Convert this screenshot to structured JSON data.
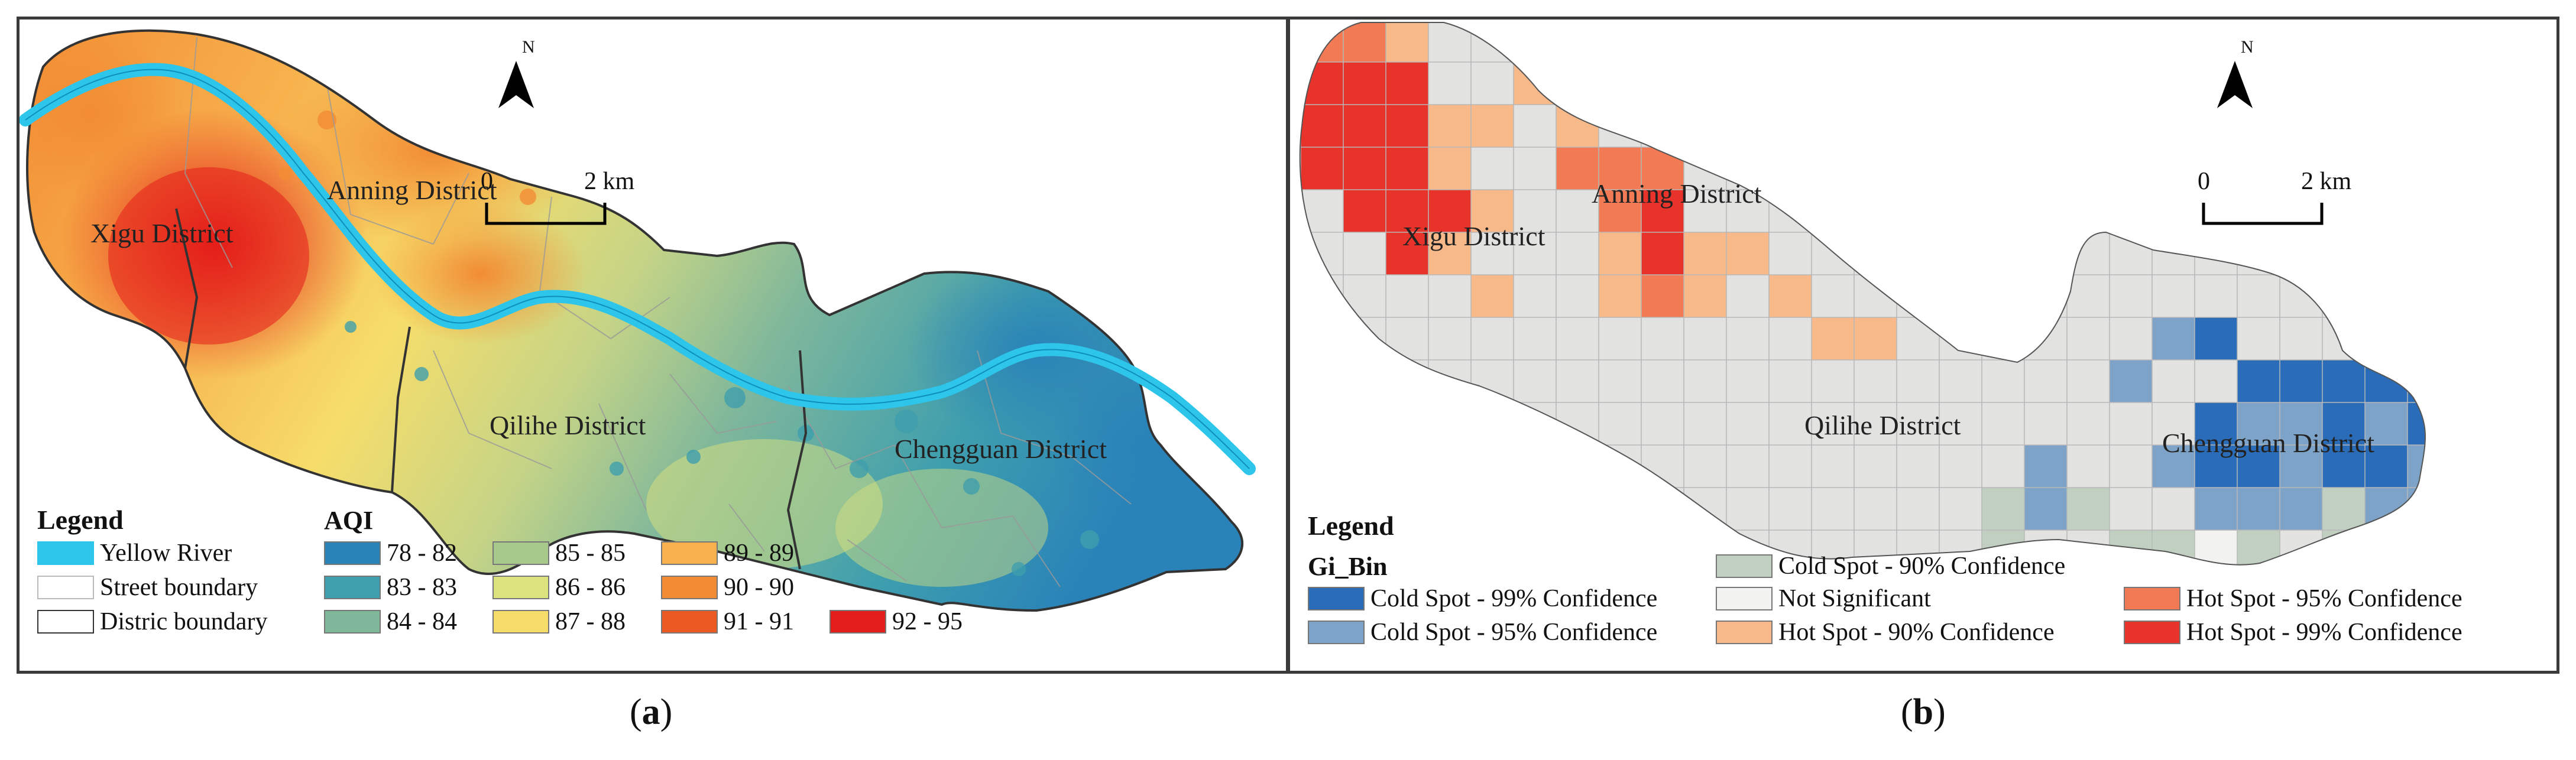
{
  "panel_a": {
    "compass_label": "N",
    "scale": {
      "zero": "0",
      "end": "2 km"
    },
    "districts": [
      "Xigu District",
      "Anning District",
      "Qilihe District",
      "Chengguan District"
    ],
    "legend": {
      "title": "Legend",
      "items": [
        {
          "label": "Yellow River",
          "color": "#2ec5ea"
        },
        {
          "label": "Street boundary",
          "color": "#ffffff"
        },
        {
          "label": "Distric boundary",
          "color": "#ffffff"
        }
      ]
    },
    "aqi": {
      "title": "AQI",
      "classes": [
        {
          "label": "78 - 82",
          "color": "#2a83b8"
        },
        {
          "label": "83 - 83",
          "color": "#3f9fad"
        },
        {
          "label": "84 - 84",
          "color": "#7fb79b"
        },
        {
          "label": "85 - 85",
          "color": "#a8c98c"
        },
        {
          "label": "86 - 86",
          "color": "#dce27e"
        },
        {
          "label": "87 - 88",
          "color": "#f6dd6a"
        },
        {
          "label": "89 - 89",
          "color": "#f7b14c"
        },
        {
          "label": "90 - 90",
          "color": "#f28c34"
        },
        {
          "label": "91 - 91",
          "color": "#ec5a22"
        },
        {
          "label": "92 - 95",
          "color": "#e41e1a"
        }
      ]
    }
  },
  "panel_b": {
    "compass_label": "N",
    "scale": {
      "zero": "0",
      "end": "2 km"
    },
    "districts": [
      "Xigu District",
      "Anning District",
      "Qilihe District",
      "Chengguan District"
    ],
    "legend": {
      "title": "Legend",
      "field": "Gi_Bin",
      "classes": [
        {
          "label": "Cold Spot - 99% Confidence",
          "color": "#2b6cb8"
        },
        {
          "label": "Cold Spot - 95% Confidence",
          "color": "#7ea3c9"
        },
        {
          "label": "Cold Spot - 90% Confidence",
          "color": "#c0cfc0"
        },
        {
          "label": "Not Significant",
          "color": "#f2f2f0"
        },
        {
          "label": "Hot Spot - 90% Confidence",
          "color": "#f8b98a"
        },
        {
          "label": "Hot Spot - 95% Confidence",
          "color": "#f27b55"
        },
        {
          "label": "Hot Spot - 99% Confidence",
          "color": "#e8332a"
        }
      ]
    }
  },
  "captions": {
    "a": "a",
    "b": "b"
  }
}
